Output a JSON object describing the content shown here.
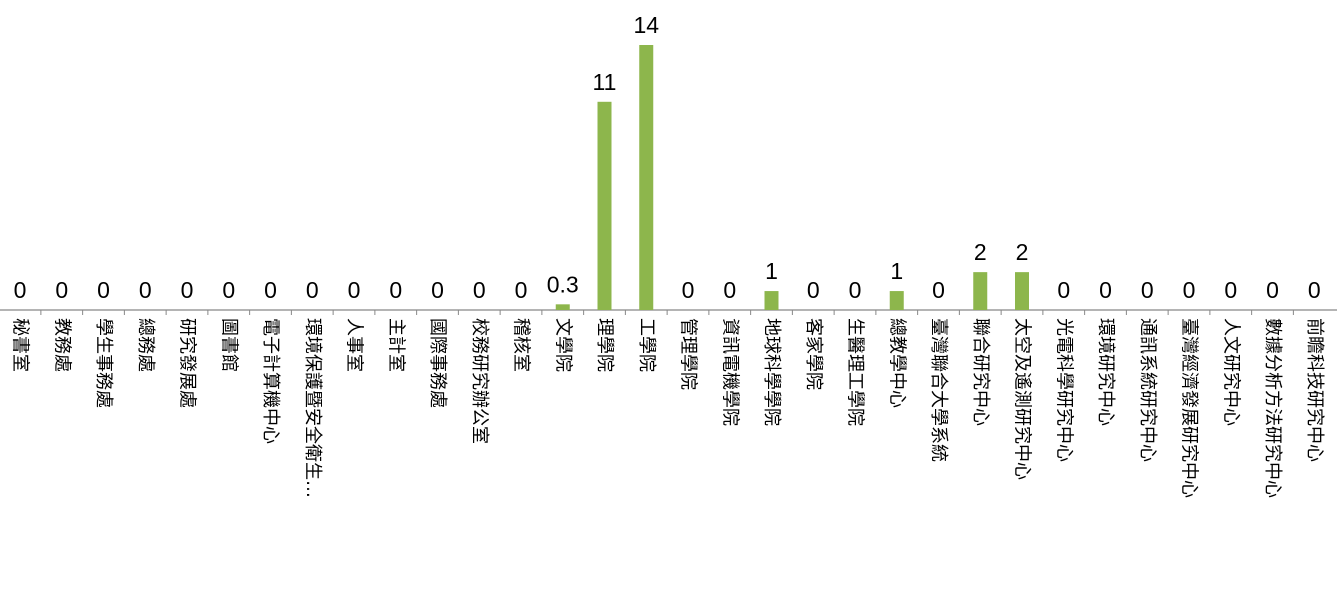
{
  "chart_data": {
    "type": "bar",
    "title": "",
    "xlabel": "",
    "ylabel": "",
    "ylim": [
      0,
      14
    ],
    "grid": false,
    "legend": "none",
    "bar_color": "#8DB64C",
    "axis_color": "#888888",
    "categories": [
      "秘書室",
      "教務處",
      "學生事務處",
      "總務處",
      "研究發展處",
      "圖書館",
      "電子計算機中心",
      "環境保護暨安全衛生…",
      "人事室",
      "主計室",
      "國際事務處",
      "校務研究辦公室",
      "稽核室",
      "文學院",
      "理學院",
      "工學院",
      "管理學院",
      "資訊電機學院",
      "地球科學學院",
      "客家學院",
      "生醫理工學院",
      "總教學中心",
      "臺灣聯合大學系統",
      "聯合研究中心",
      "太空及遙測研究中心",
      "光電科學研究中心",
      "環境研究中心",
      "通訊系統研究中心",
      "臺灣經濟發展研究中心",
      "人文研究中心",
      "數據分析方法研究中心",
      "前瞻科技研究中心"
    ],
    "values": [
      0,
      0,
      0,
      0,
      0,
      0,
      0,
      0,
      0,
      0,
      0,
      0,
      0,
      0.3,
      11,
      14,
      0,
      0,
      1,
      0,
      0,
      1,
      0,
      2,
      2,
      0,
      0,
      0,
      0,
      0,
      0,
      0
    ],
    "value_labels": [
      "0",
      "0",
      "0",
      "0",
      "0",
      "0",
      "0",
      "0",
      "0",
      "0",
      "0",
      "0",
      "0",
      "0.3",
      "11",
      "14",
      "0",
      "0",
      "1",
      "0",
      "0",
      "1",
      "0",
      "2",
      "2",
      "0",
      "0",
      "0",
      "0",
      "0",
      "0",
      "0"
    ]
  }
}
